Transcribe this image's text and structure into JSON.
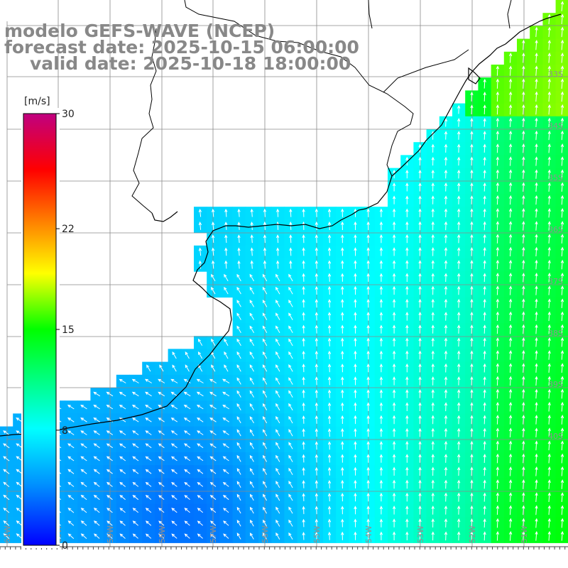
{
  "title": {
    "model": "modelo GEFS-WAVE (NCEP)",
    "forecast": "forecast date: 2025-10-15 06:00:00",
    "valid": "valid date: 2025-10-18 18:00:00"
  },
  "colorbar": {
    "unit": "[m/s]",
    "ticks": [
      "30",
      "22",
      "15",
      "8",
      "0"
    ],
    "tick_values": [
      30,
      22,
      15,
      8,
      0
    ],
    "range": [
      0,
      30
    ],
    "colors": [
      "#0000ff",
      "#0090ff",
      "#00ffff",
      "#00ff00",
      "#ffff00",
      "#ff8000",
      "#ff0000",
      "#c00080"
    ]
  },
  "map": {
    "lat_labels": [
      "33S",
      "34S",
      "35S",
      "36S",
      "37S",
      "38S",
      "39S",
      "40S"
    ],
    "lon_labels": [
      "61W",
      "60W",
      "59W",
      "58W",
      "57W",
      "56W",
      "55W",
      "54W",
      "53W",
      "52W",
      "51W"
    ],
    "grid": "on",
    "land_color": "#ffffff",
    "coast_color": "#000000",
    "arrow_color": "#ffffff"
  }
}
